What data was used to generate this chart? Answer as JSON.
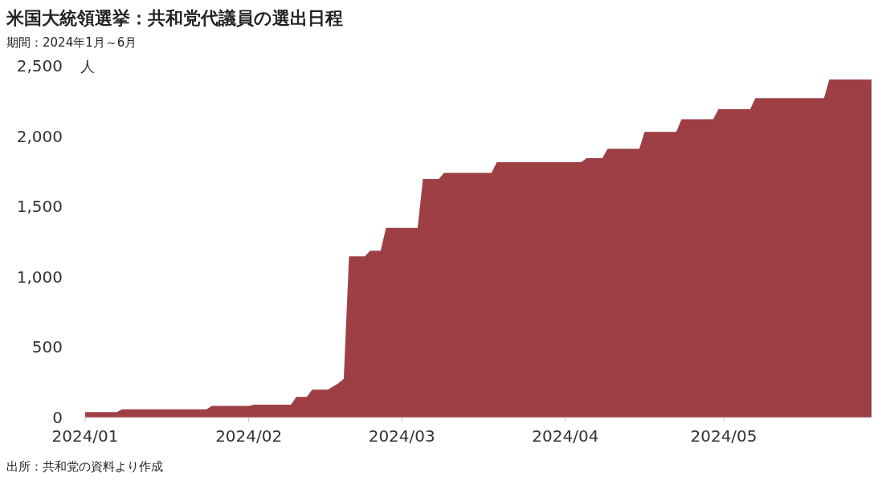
{
  "chart_data": {
    "type": "area",
    "title": "米国大統領選挙：共和党代議員の選出日程",
    "subtitle": "期間：2024年1月～6月",
    "ylabel": "人",
    "annotations": [
      "出所：共和党の資料より作成"
    ],
    "x": [
      "2024-01-01",
      "2024-01-07",
      "2024-01-08",
      "2024-01-24",
      "2024-01-25",
      "2024-02-01",
      "2024-02-02",
      "2024-02-09",
      "2024-02-10",
      "2024-02-12",
      "2024-02-13",
      "2024-02-16",
      "2024-02-18",
      "2024-02-19",
      "2024-02-20",
      "2024-02-23",
      "2024-02-24",
      "2024-02-26",
      "2024-02-27",
      "2024-03-04",
      "2024-03-05",
      "2024-03-08",
      "2024-03-09",
      "2024-03-18",
      "2024-03-19",
      "2024-04-04",
      "2024-04-05",
      "2024-04-08",
      "2024-04-09",
      "2024-04-15",
      "2024-04-16",
      "2024-04-22",
      "2024-04-23",
      "2024-04-29",
      "2024-04-30",
      "2024-05-06",
      "2024-05-07",
      "2024-05-20",
      "2024-05-21",
      "2024-05-29"
    ],
    "series": [
      {
        "color": "#9e3f46",
        "values": [
          38,
          38,
          59,
          59,
          83,
          83,
          92,
          92,
          147,
          147,
          198,
          198,
          244,
          275,
          1146,
          1146,
          1186,
          1186,
          1349,
          1349,
          1695,
          1695,
          1739,
          1739,
          1815,
          1815,
          1843,
          1843,
          1910,
          1910,
          2030,
          2030,
          2121,
          2121,
          2192,
          2192,
          2270,
          2270,
          2403,
          2403
        ]
      }
    ],
    "xlim": [
      "2024-01-01",
      "2024-05-29"
    ],
    "xticks": [
      {
        "value": "2024-01-01",
        "label": "2024/01"
      },
      {
        "value": "2024-02-01",
        "label": "2024/02"
      },
      {
        "value": "2024-03-01",
        "label": "2024/03"
      },
      {
        "value": "2024-04-01",
        "label": "2024/04"
      },
      {
        "value": "2024-05-01",
        "label": "2024/05"
      }
    ],
    "ylim": [
      0,
      2500
    ],
    "yticks": [
      {
        "value": 0,
        "label": "0"
      },
      {
        "value": 500,
        "label": "500"
      },
      {
        "value": 1000,
        "label": "1,000"
      },
      {
        "value": 1500,
        "label": "1,500"
      },
      {
        "value": 2000,
        "label": "2,000"
      },
      {
        "value": 2500,
        "label": "2,500"
      }
    ],
    "grid": false
  }
}
